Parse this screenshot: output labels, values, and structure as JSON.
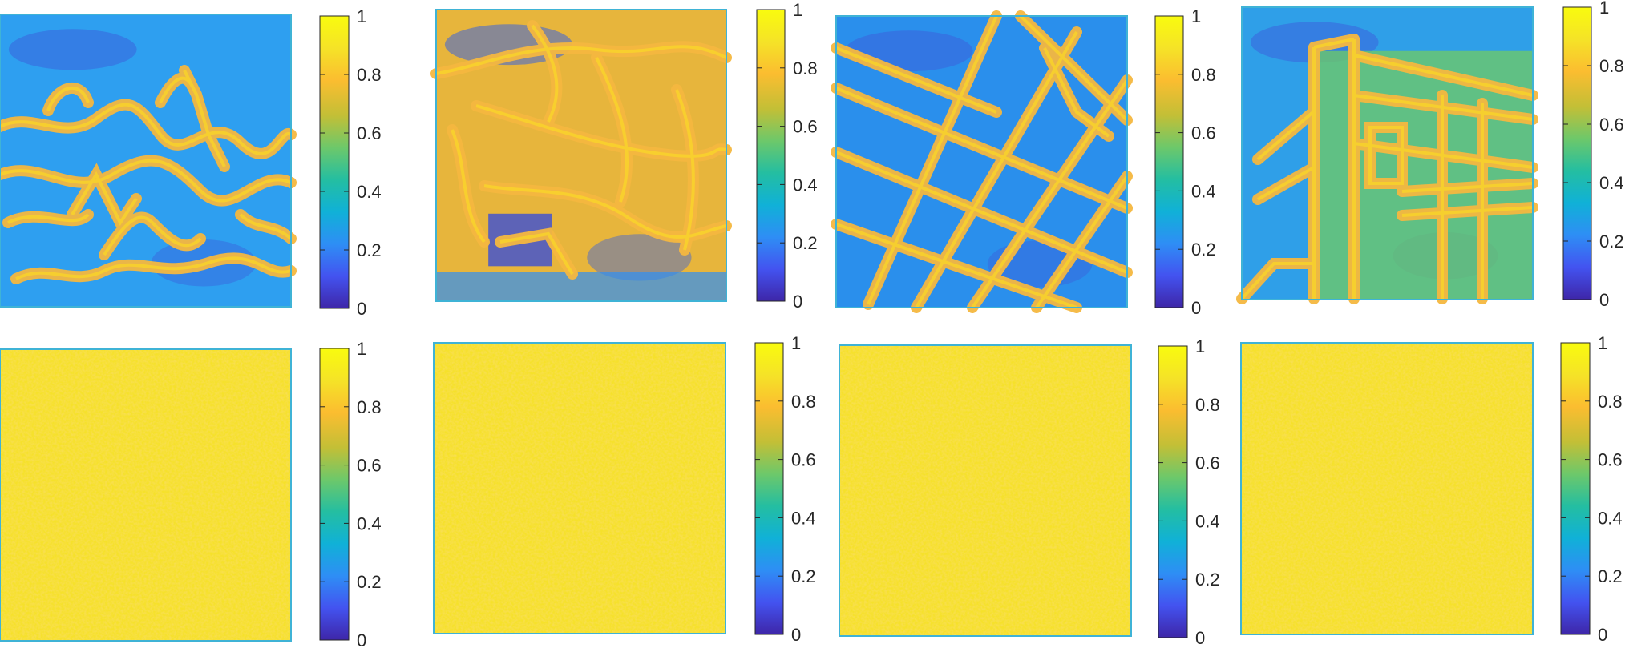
{
  "colormap": "parula",
  "colormap_stops": [
    "#3e26a8",
    "#4353f0",
    "#2e8ef5",
    "#10b1d7",
    "#24bea1",
    "#6dc86a",
    "#c3bf36",
    "#fbbd30",
    "#f5e327",
    "#f9fb0e"
  ],
  "chart_data": [
    {
      "type": "heatmap",
      "row": 1,
      "col": 1,
      "content": "edge-like pattern, mostly cyan background with orange/yellow edges",
      "clim": [
        0,
        1
      ],
      "colorbar_ticks": [
        "0",
        "0.2",
        "0.4",
        "0.6",
        "0.8",
        "1"
      ],
      "title": "",
      "xlabel": "",
      "ylabel": ""
    },
    {
      "type": "heatmap",
      "row": 1,
      "col": 2,
      "content": "edge-like pattern, mostly orange with cyan/blue regions",
      "clim": [
        0,
        1
      ],
      "colorbar_ticks": [
        "0",
        "0.2",
        "0.4",
        "0.6",
        "0.8",
        "1"
      ],
      "title": "",
      "xlabel": "",
      "ylabel": ""
    },
    {
      "type": "heatmap",
      "row": 1,
      "col": 3,
      "content": "grid of diagonal road-like orange lines on blue/cyan background",
      "clim": [
        0,
        1
      ],
      "colorbar_ticks": [
        "0",
        "0.2",
        "0.4",
        "0.6",
        "0.8",
        "1"
      ],
      "title": "",
      "xlabel": "",
      "ylabel": ""
    },
    {
      "type": "heatmap",
      "row": 1,
      "col": 4,
      "content": "building-like structure, cyan/green body with orange edges on blue background",
      "clim": [
        0,
        1
      ],
      "colorbar_ticks": [
        "0",
        "0.2",
        "0.4",
        "0.6",
        "0.8",
        "1"
      ],
      "title": "",
      "xlabel": "",
      "ylabel": ""
    },
    {
      "type": "heatmap",
      "row": 2,
      "col": 1,
      "content": "nearly uniform values around 0.9 to 1",
      "clim": [
        0,
        1
      ],
      "colorbar_ticks": [
        "0",
        "0.2",
        "0.4",
        "0.6",
        "0.8",
        "1"
      ],
      "title": "",
      "xlabel": "",
      "ylabel": ""
    },
    {
      "type": "heatmap",
      "row": 2,
      "col": 2,
      "content": "nearly uniform values around 0.9 to 1",
      "clim": [
        0,
        1
      ],
      "colorbar_ticks": [
        "0",
        "0.2",
        "0.4",
        "0.6",
        "0.8",
        "1"
      ],
      "title": "",
      "xlabel": "",
      "ylabel": ""
    },
    {
      "type": "heatmap",
      "row": 2,
      "col": 3,
      "content": "nearly uniform values around 0.9 to 1",
      "clim": [
        0,
        1
      ],
      "colorbar_ticks": [
        "0",
        "0.2",
        "0.4",
        "0.6",
        "0.8",
        "1"
      ],
      "title": "",
      "xlabel": "",
      "ylabel": ""
    },
    {
      "type": "heatmap",
      "row": 2,
      "col": 4,
      "content": "nearly uniform values around 0.9 to 1",
      "clim": [
        0,
        1
      ],
      "colorbar_ticks": [
        "0",
        "0.2",
        "0.4",
        "0.6",
        "0.8",
        "1"
      ],
      "title": "",
      "xlabel": "",
      "ylabel": ""
    }
  ]
}
